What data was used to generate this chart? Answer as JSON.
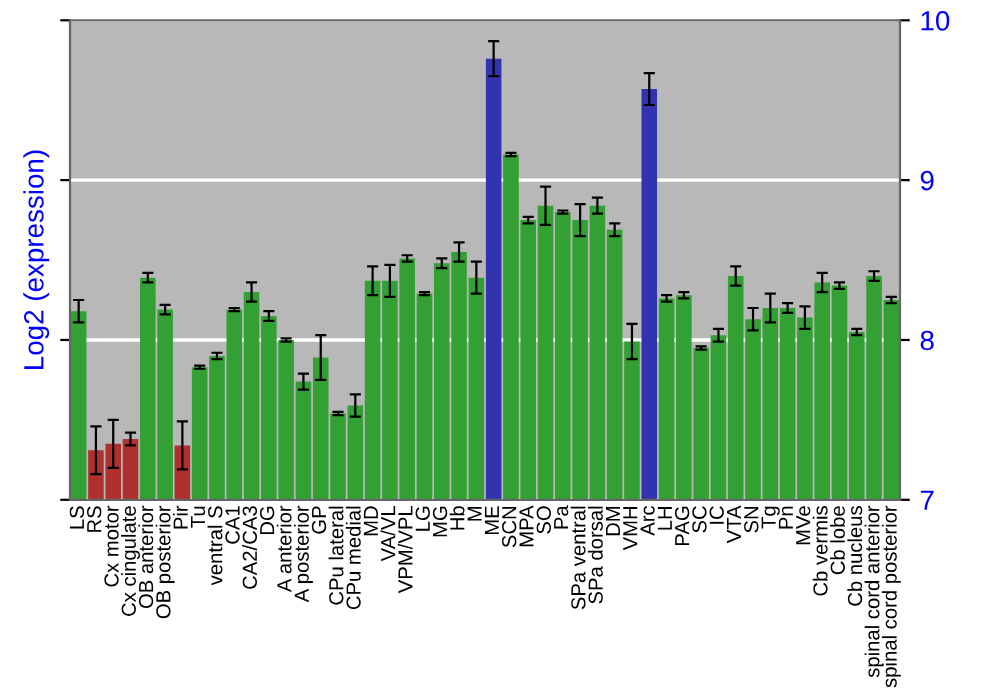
{
  "chart_data": {
    "type": "bar",
    "ylabel": "Log2 (expression)",
    "categories": [
      "LS",
      "RS",
      "Cx motor",
      "Cx cingulate",
      "OB anterior",
      "OB posterior",
      "Pir",
      "Tu",
      "ventral S",
      "CA1",
      "CA2/CA3",
      "DG",
      "A anterior",
      "A posterior",
      "GP",
      "CPu lateral",
      "CPu medial",
      "MD",
      "VA/VL",
      "VPM/VPL",
      "LG",
      "MG",
      "Hb",
      "M",
      "ME",
      "SCN",
      "MPA",
      "SO",
      "Pa",
      "SPa ventral",
      "SPa dorsal",
      "DM",
      "VMH",
      "Arc",
      "LH",
      "PAG",
      "SC",
      "IC",
      "VTA",
      "SN",
      "Tg",
      "Pn",
      "MVe",
      "Cb vermis",
      "Cb lobe",
      "Cb nucleus",
      "spinal cord anterior",
      "spinal cord posterior"
    ],
    "values": [
      8.18,
      7.31,
      7.35,
      7.38,
      8.39,
      8.19,
      7.34,
      7.83,
      7.9,
      8.19,
      8.3,
      8.15,
      8.0,
      7.74,
      7.89,
      7.54,
      7.59,
      8.37,
      8.37,
      8.51,
      8.29,
      8.48,
      8.55,
      8.39,
      9.76,
      9.16,
      8.75,
      8.84,
      8.8,
      8.75,
      8.84,
      8.69,
      7.99,
      9.57,
      8.26,
      8.28,
      7.95,
      8.03,
      8.4,
      8.13,
      8.2,
      8.2,
      8.14,
      8.36,
      8.34,
      8.05,
      8.4,
      8.25
    ],
    "errors": [
      0.07,
      0.15,
      0.15,
      0.04,
      0.03,
      0.03,
      0.15,
      0.01,
      0.02,
      0.01,
      0.06,
      0.03,
      0.01,
      0.05,
      0.14,
      0.01,
      0.07,
      0.09,
      0.1,
      0.02,
      0.01,
      0.03,
      0.06,
      0.1,
      0.11,
      0.01,
      0.02,
      0.12,
      0.01,
      0.1,
      0.05,
      0.04,
      0.11,
      0.1,
      0.02,
      0.02,
      0.01,
      0.04,
      0.06,
      0.07,
      0.09,
      0.03,
      0.07,
      0.06,
      0.02,
      0.02,
      0.03,
      0.02
    ],
    "colors": [
      "#33a033",
      "#b03030",
      "#b03030",
      "#b03030",
      "#33a033",
      "#33a033",
      "#b03030",
      "#33a033",
      "#33a033",
      "#33a033",
      "#33a033",
      "#33a033",
      "#33a033",
      "#33a033",
      "#33a033",
      "#33a033",
      "#33a033",
      "#33a033",
      "#33a033",
      "#33a033",
      "#33a033",
      "#33a033",
      "#33a033",
      "#33a033",
      "#3333b0",
      "#33a033",
      "#33a033",
      "#33a033",
      "#33a033",
      "#33a033",
      "#33a033",
      "#33a033",
      "#33a033",
      "#3333b0",
      "#33a033",
      "#33a033",
      "#33a033",
      "#33a033",
      "#33a033",
      "#33a033",
      "#33a033",
      "#33a033",
      "#33a033",
      "#33a033",
      "#33a033",
      "#33a033",
      "#33a033",
      "#33a033"
    ],
    "ylim": [
      7,
      10
    ],
    "yticks": [
      7,
      8,
      9,
      10
    ],
    "grid": "y"
  }
}
